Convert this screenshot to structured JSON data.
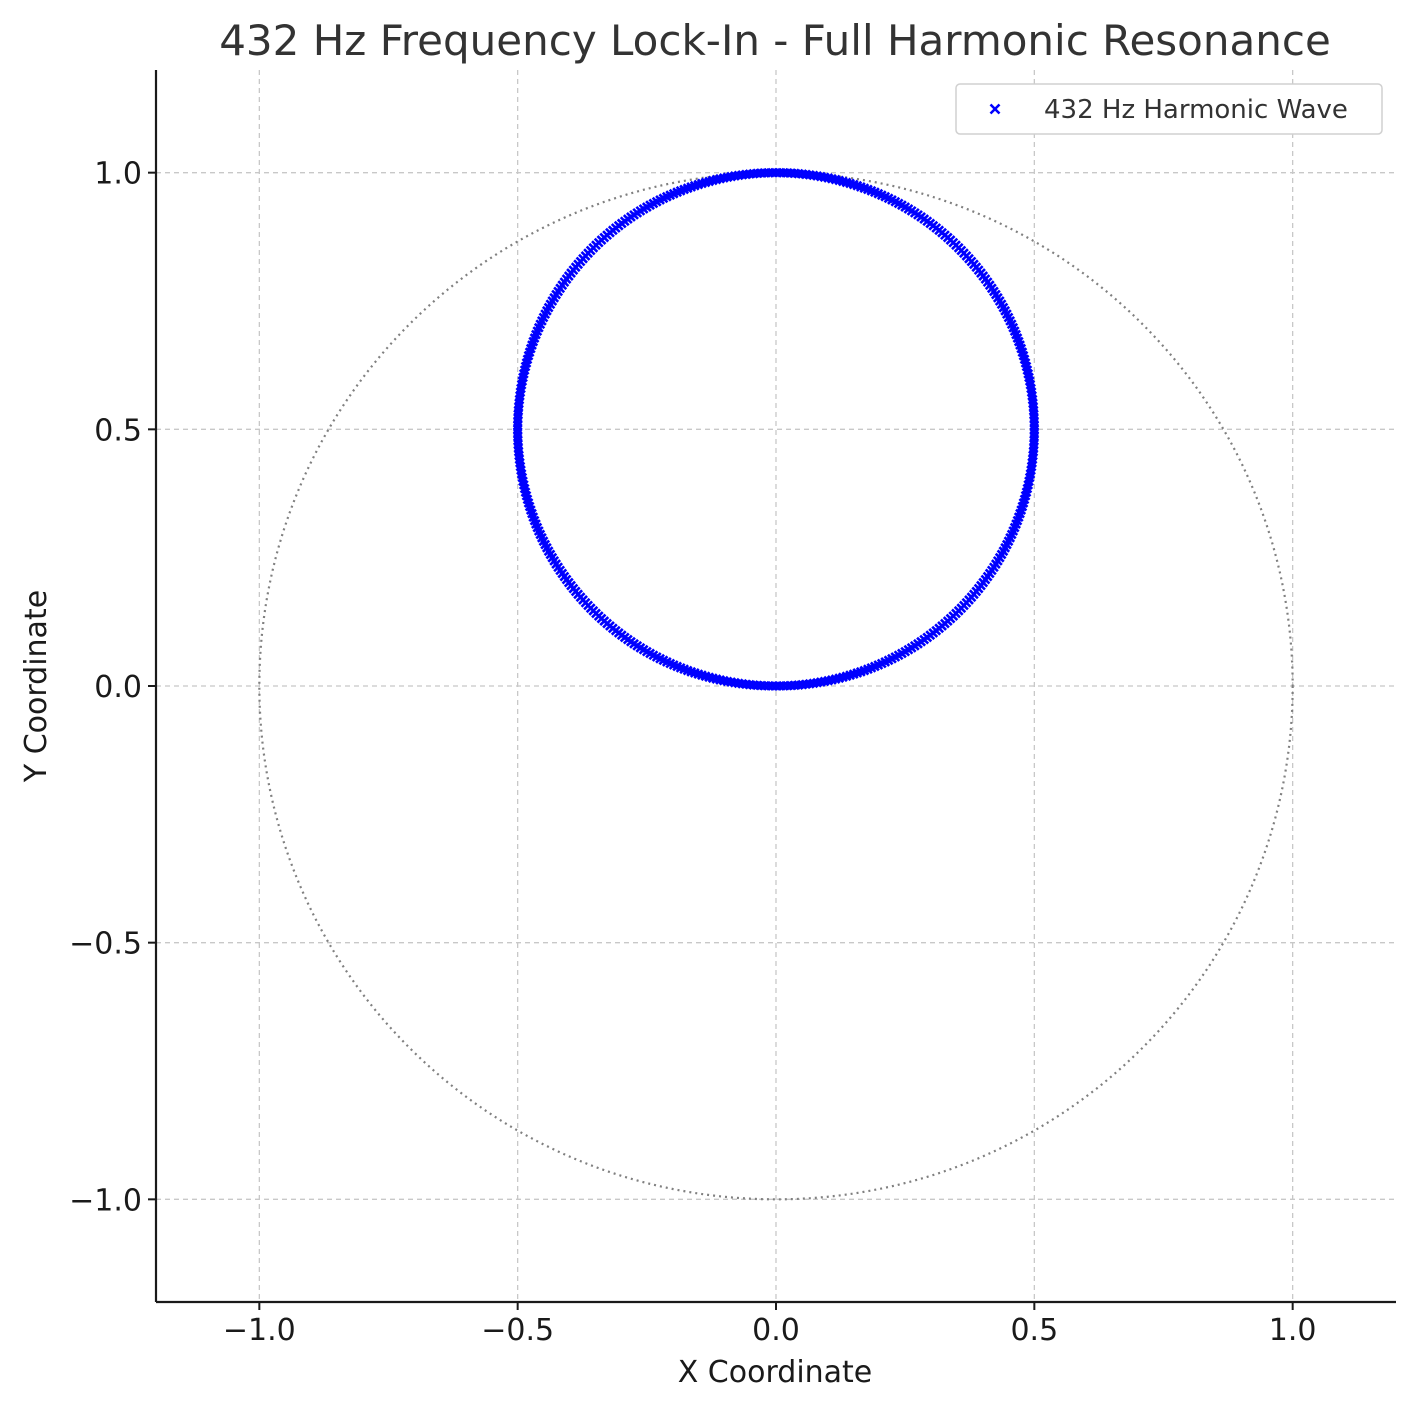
{
  "chart_data": {
    "type": "scatter",
    "title": "432 Hz Frequency Lock-In - Full Harmonic Resonance",
    "xlabel": "X Coordinate",
    "ylabel": "Y Coordinate",
    "xlim": [
      -1.2,
      1.2
    ],
    "ylim": [
      -1.2,
      1.2
    ],
    "x_ticks": [
      -1.0,
      -0.5,
      0.0,
      0.5,
      1.0
    ],
    "y_ticks": [
      -1.0,
      -0.5,
      0.0,
      0.5,
      1.0
    ],
    "x_tick_labels": [
      "−1.0",
      "−0.5",
      "0.0",
      "0.5",
      "1.0"
    ],
    "y_tick_labels": [
      "−1.0",
      "−0.5",
      "0.0",
      "0.5",
      "1.0"
    ],
    "grid": true,
    "legend_position": "top-right",
    "series": [
      {
        "name": "432 Hz Harmonic Wave",
        "marker": "x",
        "color": "#0000ff",
        "shape": "circle",
        "center": [
          0.0,
          0.5
        ],
        "radius": 0.5,
        "point_count": 432
      }
    ],
    "reference_circle": {
      "center": [
        0.0,
        0.0
      ],
      "radius": 1.0,
      "style": "dotted",
      "color": "#808080"
    },
    "colors": {
      "axis": "#1a1a1a",
      "grid": "#c8c8c8",
      "marker": "#0000ff",
      "reference": "#808080"
    }
  }
}
